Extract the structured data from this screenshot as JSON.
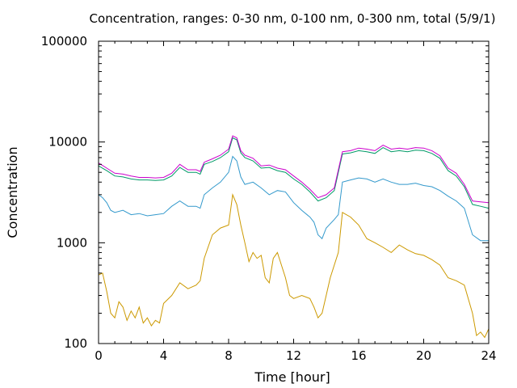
{
  "chart_data": {
    "type": "line",
    "title": "Concentration, ranges: 0-30 nm, 0-100 nm, 0-300 nm, total (5/9/1)",
    "xlabel": "Time [hour]",
    "ylabel": "Concentration",
    "xlim": [
      0,
      24
    ],
    "ylim": [
      100,
      100000
    ],
    "yscale": "log",
    "grid": false,
    "xticks": [
      0,
      4,
      8,
      12,
      16,
      20,
      24
    ],
    "xtick_labels": [
      "0",
      "4",
      "8",
      "12",
      "16",
      "20",
      "24"
    ],
    "yticks": [
      100,
      1000,
      10000,
      100000
    ],
    "ytick_labels": [
      "100",
      "1000",
      "10000",
      "100000"
    ],
    "series": [
      {
        "color": "#cc9900",
        "points": [
          [
            0,
            480
          ],
          [
            0.25,
            500
          ],
          [
            0.5,
            330
          ],
          [
            0.75,
            200
          ],
          [
            1,
            180
          ],
          [
            1.25,
            260
          ],
          [
            1.5,
            230
          ],
          [
            1.75,
            170
          ],
          [
            2,
            210
          ],
          [
            2.25,
            180
          ],
          [
            2.5,
            230
          ],
          [
            2.75,
            160
          ],
          [
            3,
            180
          ],
          [
            3.25,
            150
          ],
          [
            3.5,
            170
          ],
          [
            3.75,
            160
          ],
          [
            4,
            250
          ],
          [
            4.5,
            300
          ],
          [
            5,
            400
          ],
          [
            5.5,
            350
          ],
          [
            6,
            380
          ],
          [
            6.25,
            420
          ],
          [
            6.5,
            700
          ],
          [
            7,
            1200
          ],
          [
            7.5,
            1400
          ],
          [
            8,
            1500
          ],
          [
            8.25,
            3000
          ],
          [
            8.5,
            2400
          ],
          [
            8.75,
            1500
          ],
          [
            9,
            1000
          ],
          [
            9.25,
            650
          ],
          [
            9.5,
            800
          ],
          [
            9.75,
            700
          ],
          [
            10,
            750
          ],
          [
            10.25,
            450
          ],
          [
            10.5,
            400
          ],
          [
            10.75,
            700
          ],
          [
            11,
            800
          ],
          [
            11.25,
            600
          ],
          [
            11.5,
            450
          ],
          [
            11.75,
            300
          ],
          [
            12,
            280
          ],
          [
            12.5,
            300
          ],
          [
            13,
            280
          ],
          [
            13.25,
            230
          ],
          [
            13.5,
            180
          ],
          [
            13.75,
            200
          ],
          [
            14,
            300
          ],
          [
            14.25,
            450
          ],
          [
            14.5,
            600
          ],
          [
            14.75,
            800
          ],
          [
            15,
            2000
          ],
          [
            15.5,
            1800
          ],
          [
            16,
            1500
          ],
          [
            16.5,
            1100
          ],
          [
            17,
            1000
          ],
          [
            17.5,
            900
          ],
          [
            18,
            800
          ],
          [
            18.5,
            950
          ],
          [
            19,
            850
          ],
          [
            19.5,
            780
          ],
          [
            20,
            750
          ],
          [
            20.5,
            680
          ],
          [
            21,
            600
          ],
          [
            21.5,
            450
          ],
          [
            22,
            420
          ],
          [
            22.5,
            380
          ],
          [
            23,
            200
          ],
          [
            23.25,
            120
          ],
          [
            23.5,
            130
          ],
          [
            23.75,
            115
          ],
          [
            24,
            140
          ]
        ]
      },
      {
        "color": "#3399cc",
        "points": [
          [
            0,
            3000
          ],
          [
            0.25,
            2800
          ],
          [
            0.5,
            2500
          ],
          [
            0.75,
            2100
          ],
          [
            1,
            2000
          ],
          [
            1.5,
            2100
          ],
          [
            2,
            1900
          ],
          [
            2.5,
            1950
          ],
          [
            3,
            1850
          ],
          [
            3.5,
            1900
          ],
          [
            4,
            1950
          ],
          [
            4.5,
            2300
          ],
          [
            5,
            2600
          ],
          [
            5.5,
            2300
          ],
          [
            6,
            2300
          ],
          [
            6.25,
            2200
          ],
          [
            6.5,
            3000
          ],
          [
            7,
            3500
          ],
          [
            7.5,
            4000
          ],
          [
            8,
            5000
          ],
          [
            8.25,
            7200
          ],
          [
            8.5,
            6500
          ],
          [
            8.75,
            4500
          ],
          [
            9,
            3800
          ],
          [
            9.5,
            4000
          ],
          [
            10,
            3500
          ],
          [
            10.5,
            3000
          ],
          [
            11,
            3300
          ],
          [
            11.5,
            3200
          ],
          [
            12,
            2500
          ],
          [
            12.5,
            2100
          ],
          [
            13,
            1800
          ],
          [
            13.25,
            1600
          ],
          [
            13.5,
            1200
          ],
          [
            13.75,
            1100
          ],
          [
            14,
            1400
          ],
          [
            14.5,
            1700
          ],
          [
            14.75,
            1900
          ],
          [
            15,
            4000
          ],
          [
            15.5,
            4200
          ],
          [
            16,
            4400
          ],
          [
            16.5,
            4300
          ],
          [
            17,
            4000
          ],
          [
            17.5,
            4300
          ],
          [
            18,
            4000
          ],
          [
            18.5,
            3800
          ],
          [
            19,
            3800
          ],
          [
            19.5,
            3900
          ],
          [
            20,
            3700
          ],
          [
            20.5,
            3600
          ],
          [
            21,
            3300
          ],
          [
            21.5,
            2900
          ],
          [
            22,
            2600
          ],
          [
            22.5,
            2200
          ],
          [
            23,
            1200
          ],
          [
            23.5,
            1050
          ],
          [
            24,
            1050
          ]
        ]
      },
      {
        "color": "#009966",
        "points": [
          [
            0,
            5800
          ],
          [
            0.5,
            5200
          ],
          [
            1,
            4600
          ],
          [
            1.5,
            4500
          ],
          [
            2,
            4300
          ],
          [
            2.5,
            4200
          ],
          [
            3,
            4200
          ],
          [
            3.5,
            4150
          ],
          [
            4,
            4200
          ],
          [
            4.5,
            4600
          ],
          [
            5,
            5600
          ],
          [
            5.5,
            5000
          ],
          [
            6,
            5000
          ],
          [
            6.25,
            4800
          ],
          [
            6.5,
            6000
          ],
          [
            7,
            6400
          ],
          [
            7.5,
            7000
          ],
          [
            8,
            8000
          ],
          [
            8.25,
            11000
          ],
          [
            8.5,
            10500
          ],
          [
            8.75,
            7800
          ],
          [
            9,
            7000
          ],
          [
            9.5,
            6500
          ],
          [
            10,
            5500
          ],
          [
            10.5,
            5600
          ],
          [
            11,
            5200
          ],
          [
            11.5,
            5000
          ],
          [
            12,
            4300
          ],
          [
            12.5,
            3800
          ],
          [
            13,
            3200
          ],
          [
            13.5,
            2600
          ],
          [
            14,
            2800
          ],
          [
            14.5,
            3300
          ],
          [
            15,
            7600
          ],
          [
            15.5,
            7800
          ],
          [
            16,
            8200
          ],
          [
            16.5,
            8000
          ],
          [
            17,
            7700
          ],
          [
            17.5,
            8800
          ],
          [
            18,
            8000
          ],
          [
            18.5,
            8200
          ],
          [
            19,
            8000
          ],
          [
            19.5,
            8300
          ],
          [
            20,
            8200
          ],
          [
            20.5,
            7700
          ],
          [
            21,
            6900
          ],
          [
            21.5,
            5200
          ],
          [
            22,
            4600
          ],
          [
            22.5,
            3600
          ],
          [
            23,
            2400
          ],
          [
            23.5,
            2300
          ],
          [
            24,
            2200
          ]
        ]
      },
      {
        "color": "#cc00cc",
        "points": [
          [
            0,
            6200
          ],
          [
            0.5,
            5500
          ],
          [
            1,
            4900
          ],
          [
            1.5,
            4800
          ],
          [
            2,
            4600
          ],
          [
            2.5,
            4450
          ],
          [
            3,
            4450
          ],
          [
            3.5,
            4400
          ],
          [
            4,
            4450
          ],
          [
            4.5,
            4900
          ],
          [
            5,
            6000
          ],
          [
            5.5,
            5300
          ],
          [
            6,
            5300
          ],
          [
            6.25,
            5100
          ],
          [
            6.5,
            6300
          ],
          [
            7,
            6800
          ],
          [
            7.5,
            7400
          ],
          [
            8,
            8500
          ],
          [
            8.25,
            11500
          ],
          [
            8.5,
            11000
          ],
          [
            8.75,
            8200
          ],
          [
            9,
            7400
          ],
          [
            9.5,
            6900
          ],
          [
            10,
            5800
          ],
          [
            10.5,
            5900
          ],
          [
            11,
            5500
          ],
          [
            11.5,
            5300
          ],
          [
            12,
            4600
          ],
          [
            12.5,
            4000
          ],
          [
            13,
            3400
          ],
          [
            13.5,
            2800
          ],
          [
            14,
            3000
          ],
          [
            14.5,
            3500
          ],
          [
            15,
            8000
          ],
          [
            15.5,
            8200
          ],
          [
            16,
            8700
          ],
          [
            16.5,
            8500
          ],
          [
            17,
            8200
          ],
          [
            17.5,
            9300
          ],
          [
            18,
            8500
          ],
          [
            18.5,
            8700
          ],
          [
            19,
            8500
          ],
          [
            19.5,
            8800
          ],
          [
            20,
            8700
          ],
          [
            20.5,
            8200
          ],
          [
            21,
            7300
          ],
          [
            21.5,
            5500
          ],
          [
            22,
            4900
          ],
          [
            22.5,
            3800
          ],
          [
            23,
            2600
          ],
          [
            23.5,
            2550
          ],
          [
            24,
            2500
          ]
        ]
      }
    ]
  }
}
